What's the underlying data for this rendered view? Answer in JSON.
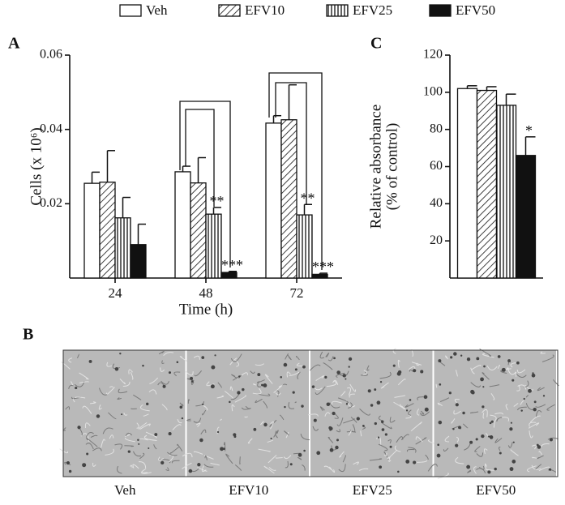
{
  "legend": {
    "series_source": "chart_data.0.series"
  },
  "chart_data": [
    {
      "type": "bar",
      "panel": "A",
      "ylabel": "Cells (x 10⁶)",
      "xlabel": "Time (h)",
      "categories": [
        "24",
        "48",
        "72"
      ],
      "ylim": [
        0,
        0.06
      ],
      "yticks": [
        0.02,
        0.04,
        0.06
      ],
      "series": [
        {
          "name": "Veh",
          "color": "#ffffff",
          "pattern": "none",
          "values": [
            0.0255,
            0.0286,
            0.0417
          ],
          "errors": [
            0.003,
            0.0015,
            0.002
          ],
          "sig": [
            null,
            null,
            null
          ]
        },
        {
          "name": "EFV10",
          "color": "#ffffff",
          "pattern": "diagonal",
          "values": [
            0.0258,
            0.0256,
            0.0426
          ],
          "errors": [
            0.0085,
            0.0068,
            0.0094
          ],
          "sig": [
            null,
            null,
            null
          ]
        },
        {
          "name": "EFV25",
          "color": "#ffffff",
          "pattern": "vertical",
          "values": [
            0.0162,
            0.0172,
            0.017
          ],
          "errors": [
            0.0055,
            0.0018,
            0.0028
          ],
          "sig": [
            null,
            "**",
            "**"
          ]
        },
        {
          "name": "EFV50",
          "color": "#111111",
          "pattern": "solid",
          "values": [
            0.009,
            0.0015,
            0.001
          ],
          "errors": [
            0.0055,
            0.0003,
            0.0003
          ],
          "sig": [
            null,
            "***",
            "***"
          ]
        }
      ]
    },
    {
      "type": "bar",
      "panel": "C",
      "ylabel": [
        "Relative absorbance",
        "(% of control)"
      ],
      "ylim": [
        0,
        120
      ],
      "yticks": [
        20,
        40,
        60,
        80,
        100,
        120
      ],
      "series": [
        {
          "color": "#ffffff",
          "pattern": "none",
          "values": [
            102
          ],
          "errors": [
            1.5
          ],
          "sig": [
            null
          ]
        },
        {
          "color": "#ffffff",
          "pattern": "diagonal",
          "values": [
            101
          ],
          "errors": [
            2
          ],
          "sig": [
            null
          ]
        },
        {
          "color": "#ffffff",
          "pattern": "vertical",
          "values": [
            93
          ],
          "errors": [
            6
          ],
          "sig": [
            null
          ]
        },
        {
          "color": "#111111",
          "pattern": "solid",
          "values": [
            66
          ],
          "errors": [
            10
          ],
          "sig": [
            "*"
          ]
        }
      ]
    }
  ],
  "panel_b": {
    "label": "B",
    "images": [
      "Veh",
      "EFV10",
      "EFV25",
      "EFV50"
    ]
  }
}
